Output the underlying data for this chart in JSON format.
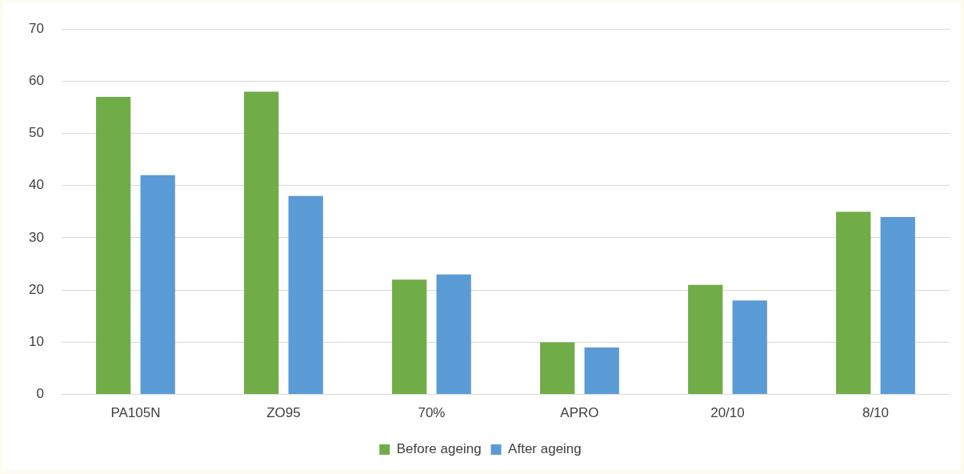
{
  "chart_data": {
    "type": "bar",
    "categories": [
      "PA105N",
      "ZO95",
      "70%",
      "APRO",
      "20/10",
      "8/10"
    ],
    "series": [
      {
        "name": "Before ageing",
        "color": "#70ad47",
        "values": [
          57,
          58,
          22,
          10,
          21,
          35
        ]
      },
      {
        "name": "After ageing",
        "color": "#5b9bd5",
        "values": [
          42,
          38,
          23,
          9,
          18,
          34
        ]
      }
    ],
    "ylim": [
      0,
      70
    ],
    "yticks": [
      0,
      10,
      20,
      30,
      40,
      50,
      60,
      70
    ],
    "grid": "y",
    "legend": "bottom"
  }
}
